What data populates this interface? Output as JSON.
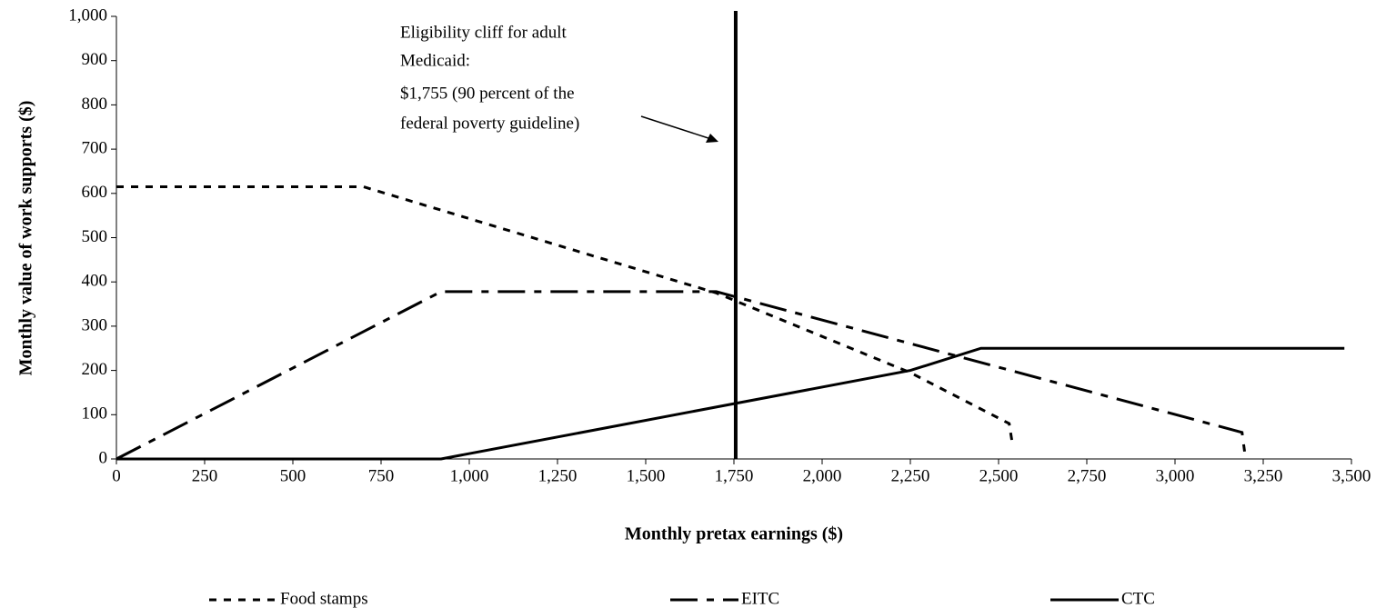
{
  "chart_data": {
    "type": "line",
    "xlabel": "Monthly pretax earnings ($)",
    "ylabel": "Monthly value of work supports ($)",
    "xlim": [
      0,
      3500
    ],
    "ylim": [
      0,
      1000
    ],
    "xticks": [
      0,
      250,
      500,
      750,
      {
        "value": 1000,
        "label": "1,000"
      },
      {
        "value": 1250,
        "label": "1,250"
      },
      {
        "value": 1500,
        "label": "1,500"
      },
      {
        "value": 1750,
        "label": "1,750"
      },
      {
        "value": 2000,
        "label": "2,000"
      },
      {
        "value": 2250,
        "label": "2,250"
      },
      {
        "value": 2500,
        "label": "2,500"
      },
      {
        "value": 2750,
        "label": "2,750"
      },
      {
        "value": 3000,
        "label": "3,000"
      },
      {
        "value": 3250,
        "label": "3,250"
      },
      {
        "value": 3500,
        "label": "3,500"
      }
    ],
    "yticks": [
      0,
      100,
      200,
      300,
      400,
      500,
      600,
      700,
      800,
      900,
      {
        "value": 1000,
        "label": "1,000"
      }
    ],
    "series": [
      {
        "name": "Food stamps",
        "color": "#000000",
        "dash": "8,8",
        "x": [
          0,
          700,
          1700,
          2250,
          2530,
          2540
        ],
        "values": [
          615,
          615,
          375,
          195,
          80,
          30
        ]
      },
      {
        "name": "EITC",
        "color": "#000000",
        "dash": "30,10,8,10",
        "x": [
          0,
          920,
          1700,
          3190,
          3200
        ],
        "values": [
          0,
          378,
          378,
          60,
          0
        ]
      },
      {
        "name": "CTC",
        "color": "#000000",
        "dash": "none",
        "x": [
          0,
          920,
          2250,
          2450,
          3480
        ],
        "values": [
          0,
          0,
          200,
          250,
          250
        ]
      }
    ],
    "annotation": {
      "x": 1755,
      "lines": [
        "Eligibility cliff for adult",
        "Medicaid:",
        "$1,755 (90 percent of the",
        "federal poverty guideline)"
      ]
    }
  }
}
